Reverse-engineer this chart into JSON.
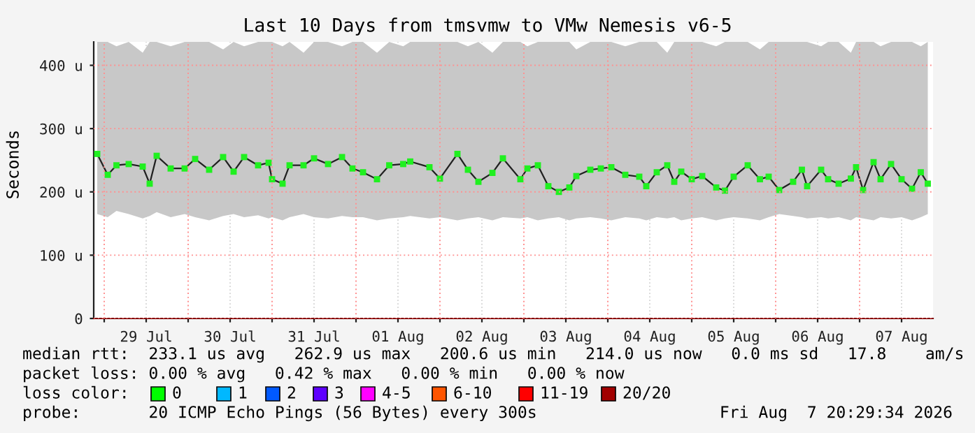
{
  "chart_data": {
    "type": "line",
    "title": "Last 10 Days from tmsvmw to VMw Nemesis v6-5",
    "ylabel": "Seconds",
    "xlim": [
      "2026-07-28T21:00",
      "2026-08-07T21:00"
    ],
    "xticks": [
      {
        "value": "2026-07-29T00:00",
        "label": null
      },
      {
        "value": "2026-07-29T12:00",
        "label": "29 Jul"
      },
      {
        "value": "2026-07-30T00:00",
        "label": null
      },
      {
        "value": "2026-07-30T12:00",
        "label": "30 Jul"
      },
      {
        "value": "2026-07-31T00:00",
        "label": null
      },
      {
        "value": "2026-07-31T12:00",
        "label": "31 Jul"
      },
      {
        "value": "2026-08-01T00:00",
        "label": null
      },
      {
        "value": "2026-08-01T12:00",
        "label": "01 Aug"
      },
      {
        "value": "2026-08-02T00:00",
        "label": null
      },
      {
        "value": "2026-08-02T12:00",
        "label": "02 Aug"
      },
      {
        "value": "2026-08-03T00:00",
        "label": null
      },
      {
        "value": "2026-08-03T12:00",
        "label": "03 Aug"
      },
      {
        "value": "2026-08-04T00:00",
        "label": null
      },
      {
        "value": "2026-08-04T12:00",
        "label": "04 Aug"
      },
      {
        "value": "2026-08-05T00:00",
        "label": null
      },
      {
        "value": "2026-08-05T12:00",
        "label": "05 Aug"
      },
      {
        "value": "2026-08-06T00:00",
        "label": null
      },
      {
        "value": "2026-08-06T12:00",
        "label": "06 Aug"
      },
      {
        "value": "2026-08-07T00:00",
        "label": null
      },
      {
        "value": "2026-08-07T12:00",
        "label": "07 Aug"
      }
    ],
    "ylim": [
      0,
      437
    ],
    "yticks": [
      0,
      {
        "value": 100,
        "label": "100 u"
      },
      {
        "value": 200,
        "label": "200 u"
      },
      {
        "value": 300,
        "label": "300 u"
      },
      {
        "value": 400,
        "label": "400 u"
      }
    ],
    "grid": true,
    "marker": "square",
    "series": [
      {
        "color": "#20f020",
        "x": [
          "2026-07-28T22:00",
          "2026-07-29T01:00",
          "2026-07-29T03:30",
          "2026-07-29T07:00",
          "2026-07-29T11:00",
          "2026-07-29T13:00",
          "2026-07-29T15:00",
          "2026-07-29T19:00",
          "2026-07-29T23:00",
          "2026-07-30T02:00",
          "2026-07-30T06:00",
          "2026-07-30T10:00",
          "2026-07-30T13:00",
          "2026-07-30T16:00",
          "2026-07-30T20:00",
          "2026-07-30T23:00",
          "2026-07-31T00:00",
          "2026-07-31T03:00",
          "2026-07-31T05:00",
          "2026-07-31T09:00",
          "2026-07-31T12:00",
          "2026-07-31T16:00",
          "2026-07-31T20:00",
          "2026-07-31T23:00",
          "2026-08-01T02:00",
          "2026-08-01T06:00",
          "2026-08-01T09:30",
          "2026-08-01T13:30",
          "2026-08-01T15:30",
          "2026-08-01T21:00",
          "2026-08-02T00:00",
          "2026-08-02T05:00",
          "2026-08-02T08:00",
          "2026-08-02T11:00",
          "2026-08-02T15:00",
          "2026-08-02T18:00",
          "2026-08-02T23:00",
          "2026-08-03T01:00",
          "2026-08-03T04:00",
          "2026-08-03T07:00",
          "2026-08-03T10:00",
          "2026-08-03T13:00",
          "2026-08-03T15:00",
          "2026-08-03T19:00",
          "2026-08-03T22:00",
          "2026-08-04T01:00",
          "2026-08-04T05:00",
          "2026-08-04T09:00",
          "2026-08-04T11:00",
          "2026-08-04T14:00",
          "2026-08-04T17:00",
          "2026-08-04T19:00",
          "2026-08-04T21:00",
          "2026-08-05T00:00",
          "2026-08-05T03:00",
          "2026-08-05T07:00",
          "2026-08-05T09:30",
          "2026-08-05T12:00",
          "2026-08-05T16:00",
          "2026-08-05T19:30",
          "2026-08-05T22:00",
          "2026-08-06T01:00",
          "2026-08-06T05:00",
          "2026-08-06T07:30",
          "2026-08-06T09:00",
          "2026-08-06T13:00",
          "2026-08-06T15:00",
          "2026-08-06T18:00",
          "2026-08-06T21:30",
          "2026-08-06T23:00",
          "2026-08-07T01:00",
          "2026-08-07T04:00",
          "2026-08-07T06:00",
          "2026-08-07T09:00",
          "2026-08-07T12:00",
          "2026-08-07T15:00",
          "2026-08-07T17:30",
          "2026-08-07T19:30"
        ],
        "values": [
          260,
          227,
          242,
          244,
          240,
          213,
          257,
          237,
          237,
          252,
          235,
          255,
          232,
          255,
          242,
          246,
          220,
          213,
          242,
          242,
          253,
          244,
          255,
          237,
          231,
          220,
          242,
          244,
          248,
          239,
          221,
          260,
          235,
          216,
          230,
          253,
          220,
          237,
          242,
          209,
          200,
          207,
          225,
          235,
          237,
          239,
          227,
          224,
          209,
          231,
          242,
          216,
          232,
          220,
          225,
          207,
          202,
          224,
          242,
          220,
          224,
          203,
          216,
          235,
          209,
          235,
          220,
          213,
          221,
          239,
          203,
          247,
          220,
          244,
          220,
          205,
          231,
          213
        ],
        "lower": [
          165,
          160,
          170,
          165,
          158,
          162,
          168,
          160,
          165,
          160,
          155,
          162,
          165,
          160,
          163,
          158,
          160,
          155,
          160,
          165,
          160,
          158,
          162,
          160,
          160,
          155,
          158,
          160,
          162,
          158,
          160,
          155,
          158,
          160,
          155,
          160,
          158,
          160,
          155,
          158,
          160,
          155,
          158,
          160,
          158,
          155,
          160,
          158,
          155,
          160,
          158,
          160,
          155,
          158,
          160,
          155,
          158,
          160,
          158,
          155,
          160,
          165,
          162,
          160,
          158,
          160,
          158,
          160,
          155,
          160,
          158,
          155,
          160,
          158,
          160,
          155,
          160,
          165
        ],
        "upper": [
          437,
          437,
          430,
          437,
          420,
          437,
          437,
          430,
          437,
          437,
          437,
          425,
          437,
          430,
          437,
          437,
          437,
          430,
          437,
          420,
          437,
          437,
          430,
          437,
          437,
          420,
          437,
          430,
          437,
          437,
          437,
          437,
          430,
          437,
          420,
          437,
          437,
          430,
          437,
          437,
          437,
          437,
          425,
          437,
          437,
          437,
          430,
          437,
          437,
          437,
          420,
          437,
          437,
          437,
          437,
          430,
          437,
          437,
          437,
          425,
          437,
          437,
          437,
          437,
          437,
          430,
          437,
          437,
          420,
          437,
          437,
          437,
          430,
          437,
          437,
          437,
          430,
          437
        ]
      }
    ],
    "annotations": [
      "median rtt:  233.1 us avg   262.9 us max   200.6 us min   214.0 us now   0.0 ms sd   17.8    am/s",
      "packet loss: 0.00 % avg   0.42 % max   0.00 % min   0.00 % now",
      "loss color:",
      "0",
      "1",
      "2",
      "3",
      "4-5",
      "6-10",
      "11-19",
      "20/20",
      "probe:       20 ICMP Echo Pings (56 Bytes) every 300s",
      "Fri Aug  7 20:29:34 2026"
    ]
  }
}
